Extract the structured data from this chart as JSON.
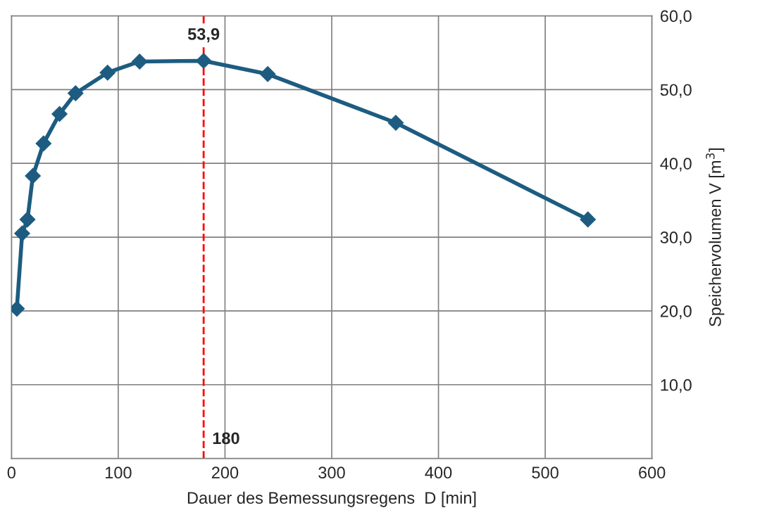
{
  "chart_data": {
    "type": "line",
    "xlabel": "Dauer des Bemessungsregens  D [min]",
    "ylabel": "Speichervolumen V [m$^{3}$]",
    "x": [
      5,
      10,
      15,
      20,
      30,
      45,
      60,
      90,
      120,
      180,
      240,
      360,
      540
    ],
    "series": [
      {
        "color": "#1d5c80",
        "values": [
          20.3,
          30.5,
          32.4,
          38.3,
          42.7,
          46.7,
          49.5,
          52.3,
          53.8,
          53.9,
          52.1,
          45.5,
          32.4
        ]
      }
    ],
    "xlim": [
      0,
      600
    ],
    "xticks": [
      0,
      100,
      200,
      300,
      400,
      500,
      600
    ],
    "ylim": [
      0,
      60
    ],
    "yticks": [
      {
        "value": 10,
        "label": "10,0"
      },
      {
        "value": 20,
        "label": "20,0"
      },
      {
        "value": 30,
        "label": "30,0"
      },
      {
        "value": 40,
        "label": "40,0"
      },
      {
        "value": 50,
        "label": "50,0"
      },
      {
        "value": 60,
        "label": "60,0"
      }
    ],
    "ref_lines": [
      {
        "axis": "x",
        "value": 180,
        "label": "180",
        "color": "#ff0000",
        "line_style": "dashed"
      }
    ],
    "annotations": [
      {
        "text": "53,9",
        "x": 180,
        "y": 53.9
      }
    ],
    "grid": true,
    "marker": "diamond",
    "line_style": "solid"
  }
}
